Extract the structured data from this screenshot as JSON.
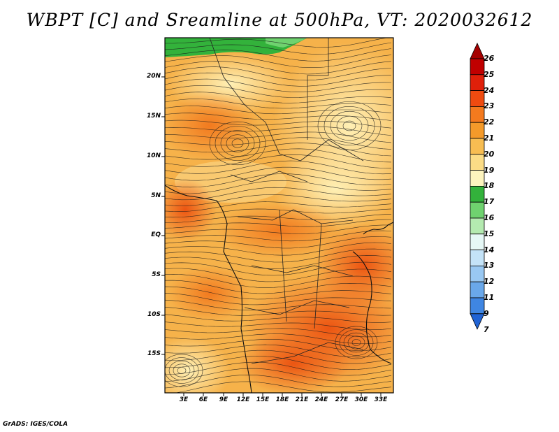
{
  "title": "WBPT [C] and Sreamline at 500hPa, VT: 2020032612",
  "credit": "GrADS: IGES/COLA",
  "map": {
    "variable": "Wet-bulb potential temperature",
    "units": "C",
    "level": "500hPa",
    "valid_time": "2020032612",
    "lat_labels": [
      "20N",
      "15N",
      "10N",
      "5N",
      "EQ",
      "5S",
      "10S",
      "15S"
    ],
    "lon_labels": [
      "3E",
      "6E",
      "9E",
      "12E",
      "15E",
      "18E",
      "21E",
      "24E",
      "27E",
      "30E",
      "33E"
    ]
  },
  "colorbar": {
    "labels": [
      "26",
      "25",
      "24",
      "23",
      "22",
      "21",
      "20",
      "19",
      "18",
      "17",
      "16",
      "15",
      "14",
      "13",
      "12",
      "11",
      "9",
      "7"
    ],
    "colors": [
      "#a50000",
      "#c00000",
      "#e0200a",
      "#ef4b10",
      "#f47a1e",
      "#f49a2a",
      "#f7bd52",
      "#fbdc86",
      "#fdf4be",
      "#33b23b",
      "#6fd26f",
      "#b4eab0",
      "#e6f8f6",
      "#c4e3f8",
      "#99c8f2",
      "#6aa8ea",
      "#3f86e2",
      "#2063d4"
    ]
  }
}
